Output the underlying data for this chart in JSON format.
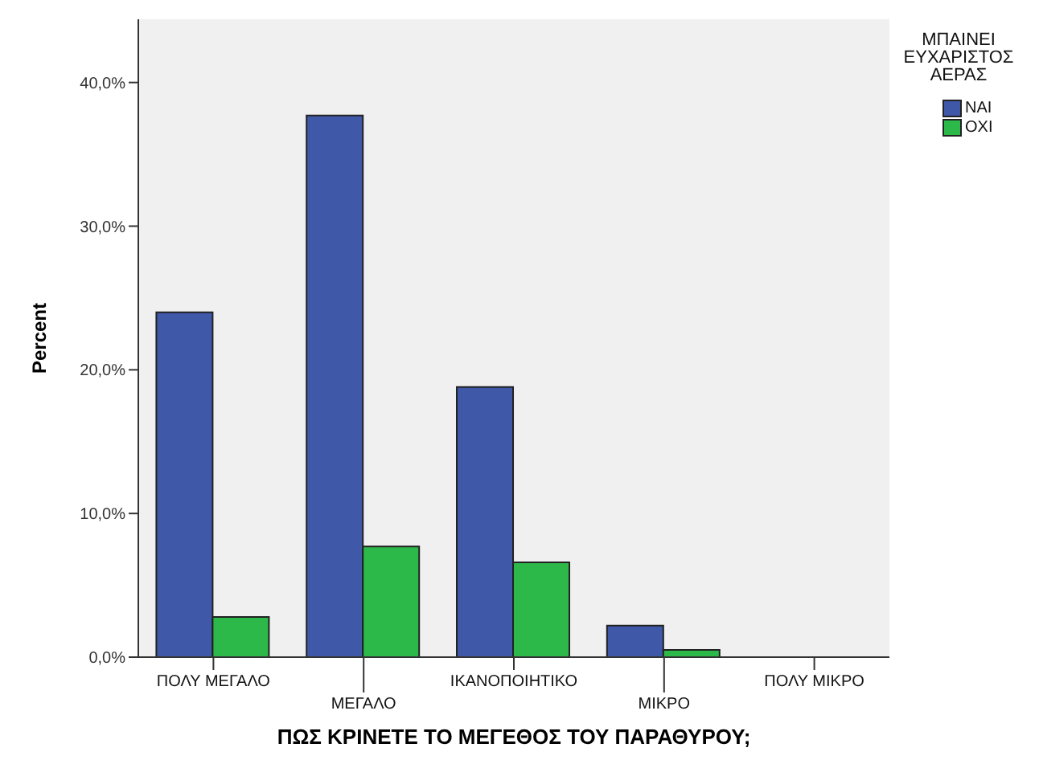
{
  "chart_data": {
    "type": "bar",
    "xlabel": "ΠΩΣ ΚΡΙΝΕΤΕ ΤΟ ΜΕΓΕΘΟΣ ΤΟΥ ΠΑΡΑΘΥΡΟΥ;",
    "ylabel": "Percent",
    "legend_title": "ΜΠΑΙΝΕΙ ΕΥΧΑΡΙΣΤΟΣ ΑΕΡΑΣ",
    "categories": [
      "ΠΟΛΥ ΜΕΓΑΛΟ",
      "ΜΕΓΑΛΟ",
      "ΙΚΑΝΟΠΟΙΗΤΙΚΟ",
      "ΜΙΚΡΟ",
      "ΠΟΛΥ ΜΙΚΡΟ"
    ],
    "series": [
      {
        "name": "ΝΑΙ",
        "color": "#3f58a8",
        "values": [
          24.0,
          37.7,
          18.8,
          2.2,
          0
        ]
      },
      {
        "name": "ΟΧΙ",
        "color": "#2db84a",
        "values": [
          2.8,
          7.7,
          6.6,
          0.5,
          0
        ]
      }
    ],
    "ylim": [
      0,
      44.4
    ],
    "yticks": [
      {
        "value": 0,
        "label": "0,0%"
      },
      {
        "value": 10,
        "label": "10,0%"
      },
      {
        "value": 20,
        "label": "20,0%"
      },
      {
        "value": 30,
        "label": "30,0%"
      },
      {
        "value": 40,
        "label": "40,0%"
      }
    ],
    "grid": false,
    "legend": "top right"
  }
}
